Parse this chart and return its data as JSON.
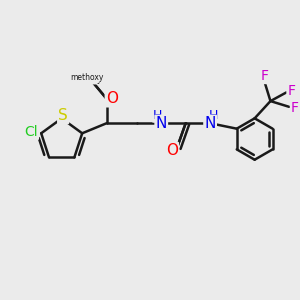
{
  "background_color": "#ebebeb",
  "bond_color": "#1a1a1a",
  "bond_width": 1.8,
  "font_size": 10,
  "fig_width": 3.0,
  "fig_height": 3.0,
  "dpi": 100,
  "colors": {
    "S": "#cccc00",
    "Cl": "#22cc22",
    "O": "#ff0000",
    "N": "#0000ee",
    "F": "#cc00cc",
    "C": "#1a1a1a",
    "H": "#0000ee"
  }
}
